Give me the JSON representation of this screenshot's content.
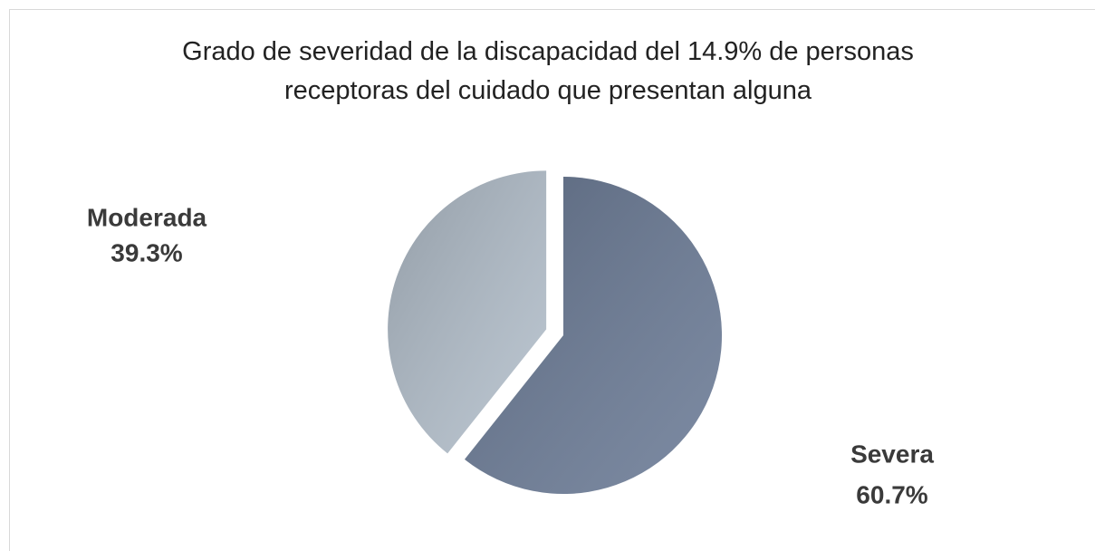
{
  "chart_data": {
    "type": "pie",
    "title": "Grado de severidad de la discapacidad del 14.9% de personas receptoras del cuidado que presentan alguna",
    "categories": [
      "Severa",
      "Moderada"
    ],
    "values": [
      60.7,
      39.3
    ],
    "value_labels": [
      "60.7%",
      "39.3%"
    ],
    "colors": [
      "#6b7b96",
      "#b3bfcb"
    ]
  }
}
